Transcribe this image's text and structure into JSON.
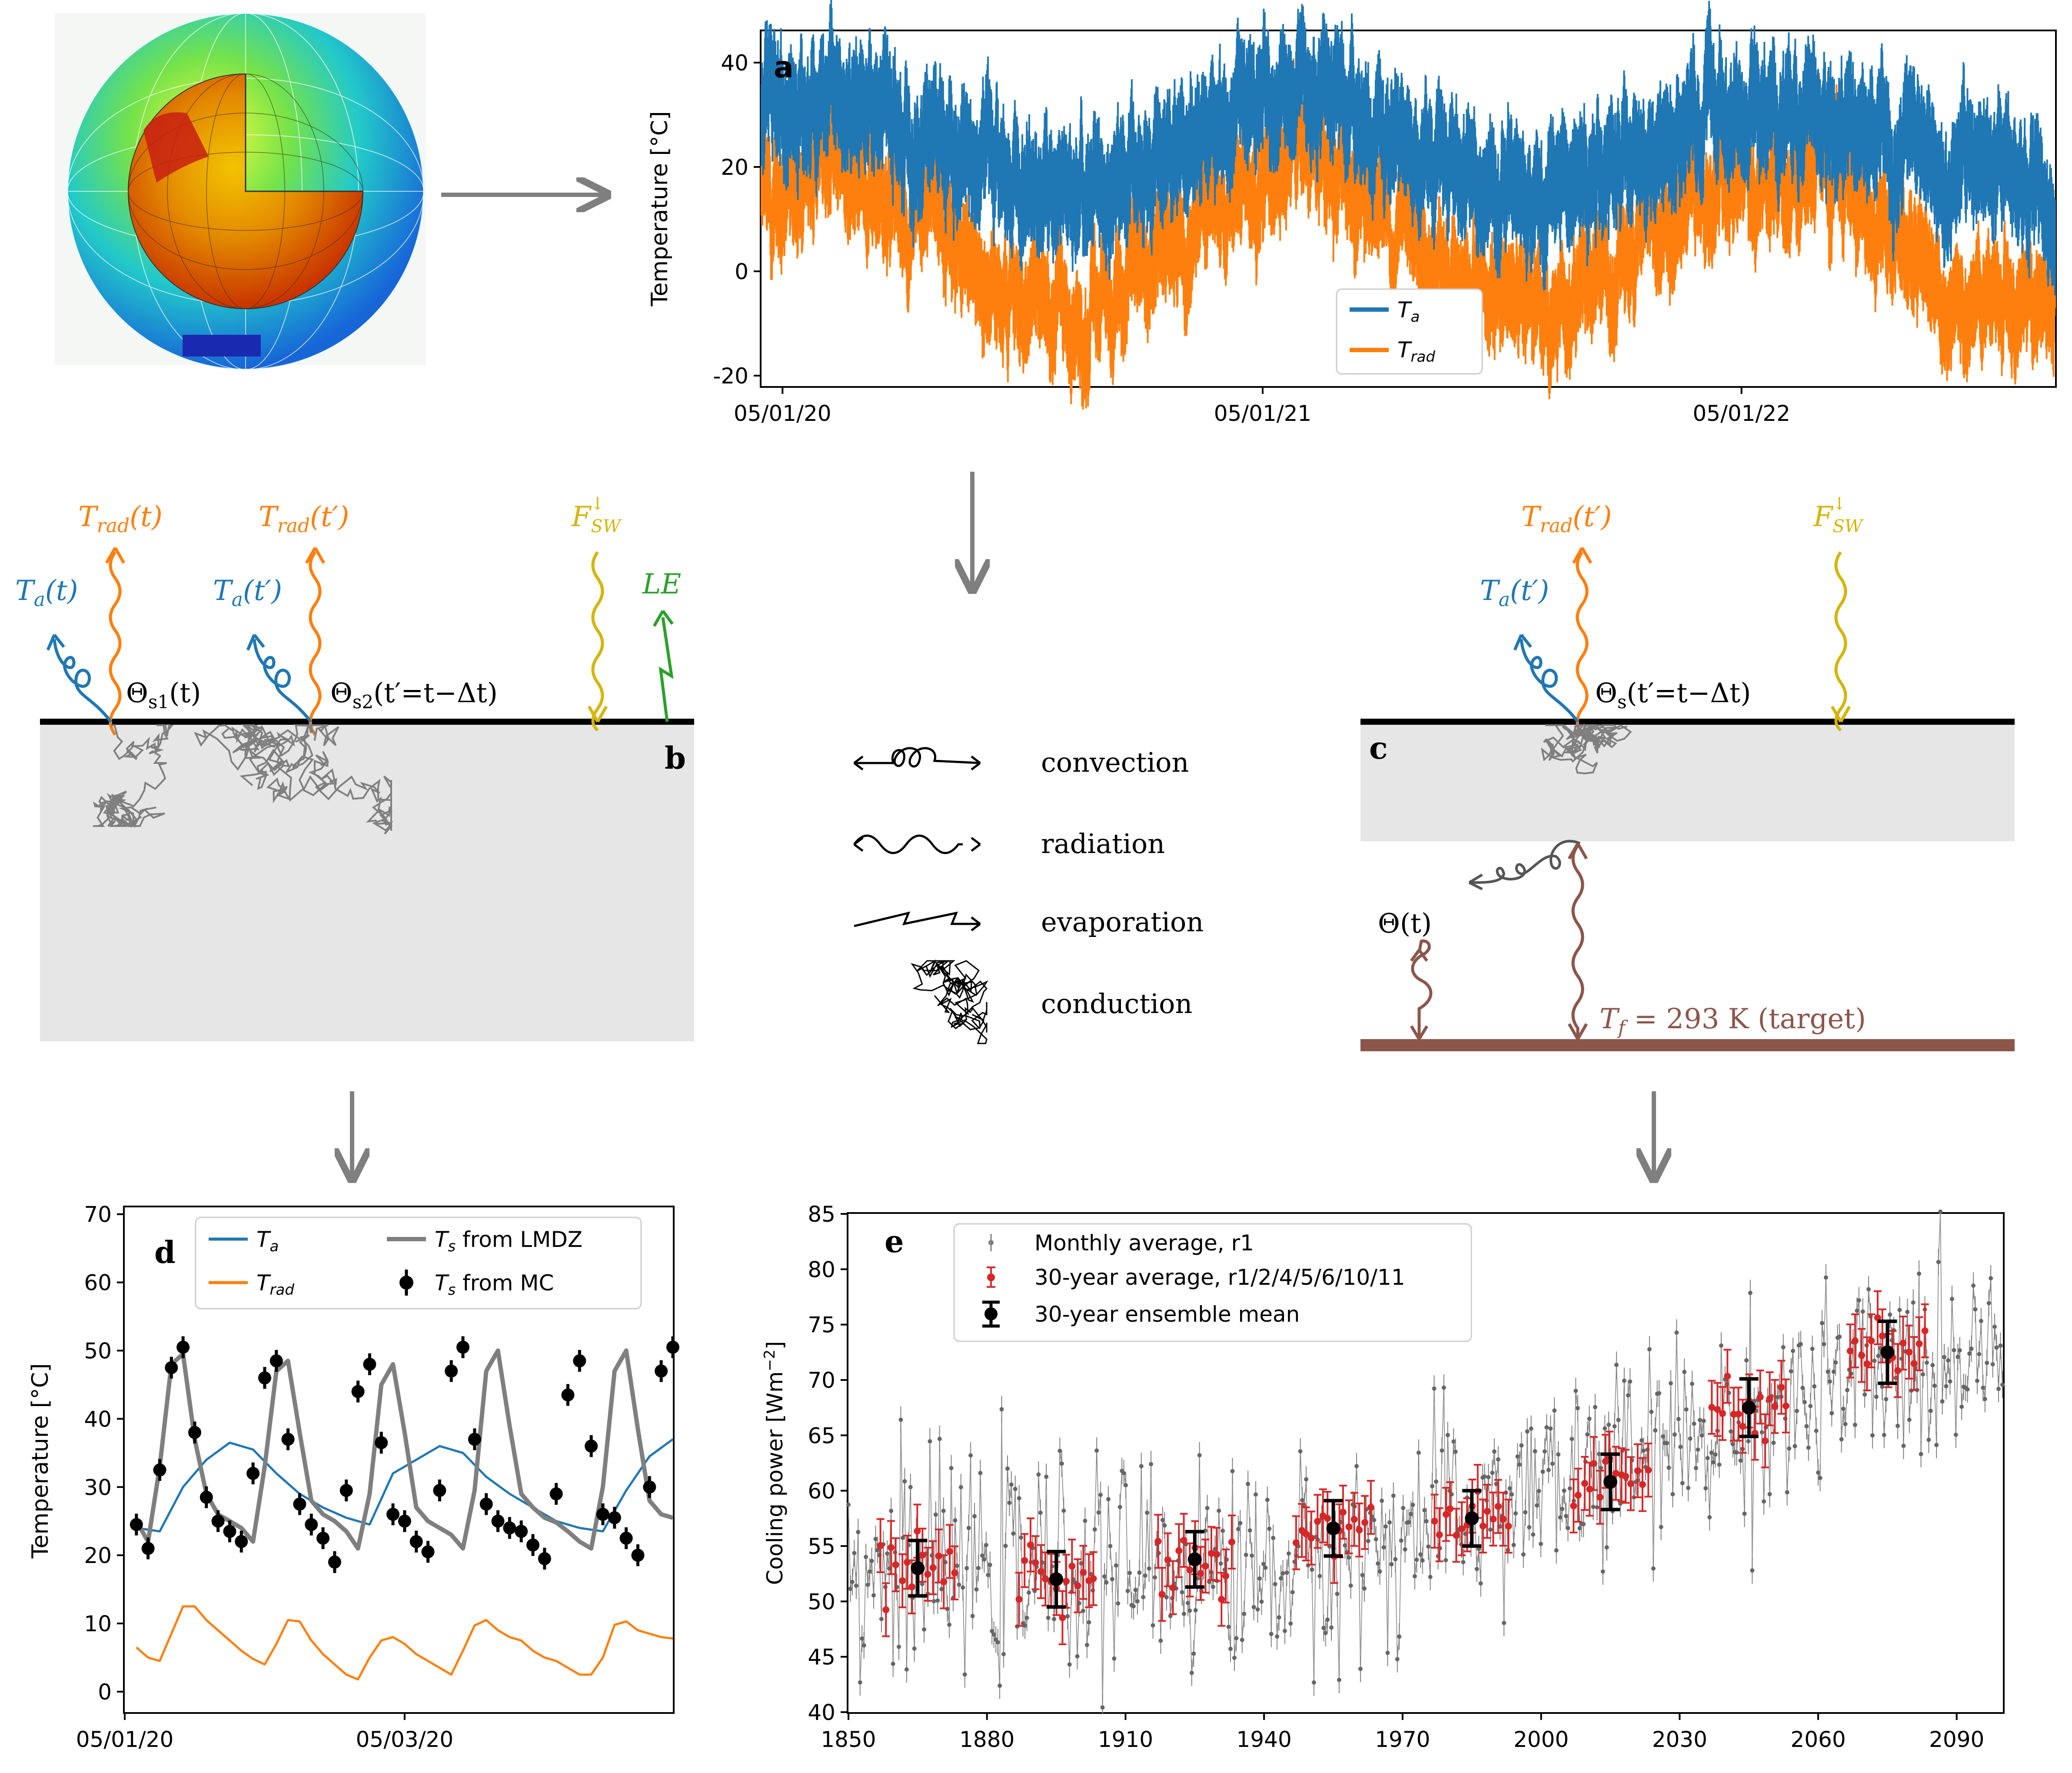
{
  "colors": {
    "ta": "#1f77b4",
    "trad": "#ff7f0e",
    "fsw": "#d4b50a",
    "le": "#2ca02c",
    "target": "#8c564b",
    "gray": "#7f7f7f",
    "red": "#d62728",
    "black": "#000000"
  },
  "panels": {
    "a_label": "a",
    "b_label": "b",
    "c_label": "c",
    "d_label": "d",
    "e_label": "e"
  },
  "diagram": {
    "b": {
      "trad_t": "Trad(t)",
      "trad_tp": "Trad(t′)",
      "ta_t": "Ta(t)",
      "ta_tp": "Ta(t′)",
      "fsw": "F↓SW",
      "le": "LE",
      "theta_s1": "Θs1(t)",
      "theta_s2": "Θs2(t′=t−Δt)"
    },
    "c": {
      "trad_tp": "Trad(t′)",
      "ta_tp": "Ta(t′)",
      "fsw": "F↓SW",
      "theta_s": "Θs(t′=t−Δt)",
      "theta_t": "Θ(t)",
      "target": "Tf = 293 K (target)"
    },
    "legend": {
      "convection": "convection",
      "radiation": "radiation",
      "evaporation": "evaporation",
      "conduction": "conduction"
    }
  },
  "chart_data": [
    {
      "id": "a",
      "type": "line",
      "title": "",
      "xlabel": "",
      "ylabel": "Temperature [°C]",
      "x_range": [
        "2019-12-20",
        "2022-09-01"
      ],
      "ylim": [
        -22,
        46
      ],
      "yticks": [
        -20,
        0,
        20,
        40
      ],
      "xticks": [
        {
          "date": "2020-01-05",
          "label": "05/01/20"
        },
        {
          "date": "2021-01-05",
          "label": "05/01/21"
        },
        {
          "date": "2022-01-05",
          "label": "05/01/22"
        }
      ],
      "series": [
        {
          "name": "Ta",
          "color": "#1f77b4",
          "description": "hourly air temperature, seasonal mean ~24 °C, amplitude ~8 °C (peak ~Feb, trough ~Aug), daily swings ~±10 °C",
          "seasonal_mean": 24,
          "seasonal_amplitude": 8,
          "daily_half_range": 10
        },
        {
          "name": "Trad",
          "color": "#ff7f0e",
          "description": "radiative sky temperature, seasonal mean ~6 °C, amplitude ~13 °C, daily swings ~±9 °C",
          "seasonal_mean": 6,
          "seasonal_amplitude": 13,
          "daily_half_range": 9
        }
      ],
      "legend": [
        "Ta",
        "Trad"
      ],
      "legend_loc": "lower center"
    },
    {
      "id": "d",
      "type": "line",
      "xlabel": "",
      "ylabel": "Temperature [°C]",
      "ylim": [
        -3,
        71
      ],
      "yticks": [
        0,
        10,
        20,
        30,
        40,
        50,
        60,
        70
      ],
      "xlim_hours": [
        0,
        47
      ],
      "xticks": [
        {
          "hour": 0,
          "label": "05/01/20"
        },
        {
          "hour": 24,
          "label": "05/03/20"
        }
      ],
      "series": [
        {
          "name": "Ta",
          "color": "#1f77b4",
          "x": [
            1,
            3,
            5,
            7,
            9,
            11,
            13,
            15,
            17,
            19,
            21,
            23,
            25,
            27,
            29,
            31,
            33,
            35,
            37,
            39,
            41,
            43,
            45,
            47
          ],
          "y": [
            24,
            23.5,
            30,
            34,
            36.5,
            35.5,
            32,
            29,
            27,
            25.5,
            24.5,
            32,
            34,
            36,
            35,
            31.5,
            29,
            27,
            25,
            24,
            23.5,
            29.5,
            34.5,
            37
          ]
        },
        {
          "name": "Trad",
          "color": "#ff7f0e",
          "x": [
            1,
            2,
            3,
            4,
            5,
            6,
            7,
            8,
            9,
            10,
            11,
            12,
            13,
            14,
            15,
            16,
            17,
            18,
            19,
            20,
            21,
            22,
            23,
            24,
            25,
            26,
            27,
            28,
            29,
            30,
            31,
            32,
            33,
            34,
            35,
            36,
            37,
            38,
            39,
            40,
            41,
            42,
            43,
            44,
            45,
            46,
            47
          ],
          "y": [
            6.5,
            5,
            4.5,
            8.5,
            12.5,
            12.5,
            10.5,
            9,
            7.5,
            6,
            4.8,
            4,
            7,
            10.5,
            10.3,
            7.5,
            5.5,
            4,
            2.5,
            1.8,
            5,
            7.5,
            8,
            7,
            5.5,
            4.5,
            3.5,
            2.5,
            6,
            9.7,
            10.5,
            9,
            8,
            7.5,
            6,
            5,
            4.5,
            3.5,
            2.5,
            2.5,
            5,
            9.8,
            10.3,
            9,
            8.5,
            8,
            7.8
          ]
        },
        {
          "name": "Ts from LMDZ",
          "color": "#7f7f7f",
          "x": [
            1,
            2,
            3,
            4,
            5,
            6,
            7,
            8,
            9,
            10,
            11,
            12,
            13,
            14,
            15,
            16,
            17,
            18,
            19,
            20,
            21,
            22,
            23,
            24,
            25,
            26,
            27,
            28,
            29,
            30,
            31,
            32,
            33,
            34,
            35,
            36,
            37,
            38,
            39,
            40,
            41,
            42,
            43,
            44,
            45,
            46,
            47
          ],
          "y": [
            25,
            22,
            33,
            48,
            49.5,
            37,
            29,
            26,
            25,
            24,
            22,
            33,
            47,
            48.5,
            38,
            28,
            26,
            25,
            23.5,
            21,
            29,
            45,
            48,
            38,
            27,
            25,
            24,
            23,
            21,
            29.5,
            47,
            50,
            39,
            29,
            27,
            25.5,
            24.8,
            23.5,
            22,
            21,
            30,
            47,
            50,
            38.5,
            28,
            26,
            25.5
          ]
        },
        {
          "name": "Ts from MC",
          "color": "#000000",
          "x": [
            1,
            2,
            3,
            4,
            5,
            6,
            7,
            8,
            9,
            10,
            11,
            12,
            13,
            14,
            15,
            16,
            17,
            18,
            19,
            20,
            21,
            22,
            23,
            24,
            25,
            26,
            27,
            28,
            29,
            30,
            31,
            32,
            33,
            34,
            35,
            36,
            37,
            38,
            39,
            40,
            41,
            42,
            43,
            44,
            45,
            46,
            47
          ],
          "y": [
            24.5,
            21,
            32.5,
            47.5,
            50.5,
            38,
            28.5,
            25,
            23.5,
            22,
            32,
            46,
            48.5,
            37,
            27.5,
            24.5,
            22.5,
            19,
            29.5,
            44,
            48,
            36.5,
            26,
            25,
            22,
            20.5,
            29.5,
            47,
            50.5,
            37,
            27.5,
            25,
            24,
            23.5,
            21.5,
            19.5,
            29,
            43.5,
            48.5,
            36,
            26,
            25.5,
            22.5,
            20,
            30,
            47,
            50.5
          ],
          "error": 1.6
        }
      ],
      "legend": [
        "Ta",
        "Trad",
        "Ts from LMDZ",
        "Ts from MC"
      ],
      "legend_loc": "upper center"
    },
    {
      "id": "e",
      "type": "scatter",
      "xlabel": "",
      "ylabel": "Cooling power [Wm−2]",
      "xlim": [
        1850,
        2100
      ],
      "ylim": [
        40,
        85
      ],
      "xticks": [
        1850,
        1880,
        1910,
        1940,
        1970,
        2000,
        2030,
        2060,
        2090
      ],
      "yticks": [
        40,
        45,
        50,
        55,
        60,
        65,
        70,
        75,
        80,
        85
      ],
      "monthly_trend": {
        "start_year": 1850,
        "end_year": 2100,
        "base_until_1950": 53,
        "slope_after_1950_per_year": 0.14,
        "scatter_sd": 4.5
      },
      "ensemble_means": [
        {
          "x": 1865,
          "y": 53.0,
          "err": 2.5
        },
        {
          "x": 1895,
          "y": 52.0,
          "err": 2.5
        },
        {
          "x": 1925,
          "y": 53.8,
          "err": 2.5
        },
        {
          "x": 1955,
          "y": 56.6,
          "err": 2.5
        },
        {
          "x": 1985,
          "y": 57.5,
          "err": 2.5
        },
        {
          "x": 2015,
          "y": 60.8,
          "err": 2.5
        },
        {
          "x": 2045,
          "y": 67.5,
          "err": 2.6
        },
        {
          "x": 2075,
          "y": 72.5,
          "err": 2.8
        }
      ],
      "legend": [
        "Monthly average, r1",
        "30-year average, r1/2/4/5/6/10/11",
        "30-year ensemble mean"
      ],
      "legend_loc": "upper left"
    }
  ]
}
